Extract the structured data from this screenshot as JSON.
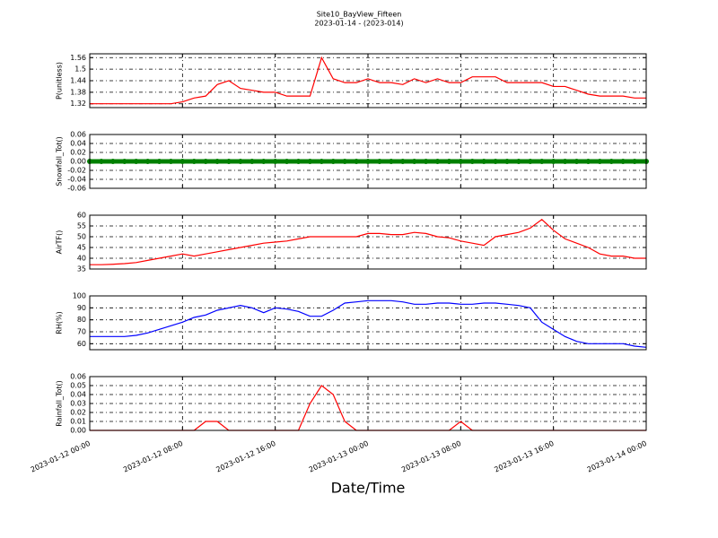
{
  "figure": {
    "title": "Site10_BayView_Fifteen",
    "subtitle": "2023-01-14 - (2023-014)",
    "xlabel": "Date/Time"
  },
  "chart_data": [
    {
      "type": "line",
      "ylabel": "P(unitless)",
      "color": "#ff0000",
      "x": [
        "2023-01-12 00:00",
        "2023-01-12 01:00",
        "2023-01-12 02:00",
        "2023-01-12 03:00",
        "2023-01-12 04:00",
        "2023-01-12 05:00",
        "2023-01-12 06:00",
        "2023-01-12 07:00",
        "2023-01-12 08:00",
        "2023-01-12 09:00",
        "2023-01-12 10:00",
        "2023-01-12 11:00",
        "2023-01-12 12:00",
        "2023-01-12 13:00",
        "2023-01-12 14:00",
        "2023-01-12 15:00",
        "2023-01-12 16:00",
        "2023-01-12 17:00",
        "2023-01-12 18:00",
        "2023-01-12 19:00",
        "2023-01-12 20:00",
        "2023-01-12 21:00",
        "2023-01-12 22:00",
        "2023-01-12 23:00",
        "2023-01-13 00:00",
        "2023-01-13 01:00",
        "2023-01-13 02:00",
        "2023-01-13 03:00",
        "2023-01-13 04:00",
        "2023-01-13 05:00",
        "2023-01-13 06:00",
        "2023-01-13 07:00",
        "2023-01-13 08:00",
        "2023-01-13 09:00",
        "2023-01-13 10:00",
        "2023-01-13 11:00",
        "2023-01-13 12:00",
        "2023-01-13 13:00",
        "2023-01-13 14:00",
        "2023-01-13 15:00",
        "2023-01-13 16:00",
        "2023-01-13 17:00",
        "2023-01-13 18:00",
        "2023-01-13 19:00",
        "2023-01-13 20:00",
        "2023-01-13 21:00",
        "2023-01-13 22:00",
        "2023-01-13 23:00",
        "2023-01-14 00:00"
      ],
      "values": [
        1.32,
        1.32,
        1.32,
        1.32,
        1.32,
        1.32,
        1.32,
        1.32,
        1.33,
        1.35,
        1.36,
        1.42,
        1.44,
        1.4,
        1.39,
        1.38,
        1.38,
        1.36,
        1.36,
        1.36,
        1.56,
        1.45,
        1.43,
        1.43,
        1.45,
        1.43,
        1.43,
        1.42,
        1.45,
        1.43,
        1.45,
        1.43,
        1.43,
        1.46,
        1.46,
        1.46,
        1.43,
        1.43,
        1.43,
        1.43,
        1.41,
        1.41,
        1.39,
        1.37,
        1.36,
        1.36,
        1.36,
        1.35,
        1.35
      ],
      "xlim": [
        "2023-01-12 00:00",
        "2023-01-14 00:00"
      ],
      "xticks": [
        "2023-01-12 00:00",
        "2023-01-12 08:00",
        "2023-01-12 16:00",
        "2023-01-13 00:00",
        "2023-01-13 08:00",
        "2023-01-13 16:00",
        "2023-01-14 00:00"
      ],
      "ylim": [
        1.3,
        1.58
      ],
      "yticks": [
        1.32,
        1.38,
        1.44,
        1.5,
        1.56
      ],
      "grid": true,
      "show_xticklabels": false
    },
    {
      "type": "scatter",
      "ylabel": "Snowfall_Tot()",
      "color": "#008000",
      "x": [
        "2023-01-12 00:00",
        "2023-01-12 01:00",
        "2023-01-12 02:00",
        "2023-01-12 03:00",
        "2023-01-12 04:00",
        "2023-01-12 05:00",
        "2023-01-12 06:00",
        "2023-01-12 07:00",
        "2023-01-12 08:00",
        "2023-01-12 09:00",
        "2023-01-12 10:00",
        "2023-01-12 11:00",
        "2023-01-12 12:00",
        "2023-01-12 13:00",
        "2023-01-12 14:00",
        "2023-01-12 15:00",
        "2023-01-12 16:00",
        "2023-01-12 17:00",
        "2023-01-12 18:00",
        "2023-01-12 19:00",
        "2023-01-12 20:00",
        "2023-01-12 21:00",
        "2023-01-12 22:00",
        "2023-01-12 23:00",
        "2023-01-13 00:00",
        "2023-01-13 01:00",
        "2023-01-13 02:00",
        "2023-01-13 03:00",
        "2023-01-13 04:00",
        "2023-01-13 05:00",
        "2023-01-13 06:00",
        "2023-01-13 07:00",
        "2023-01-13 08:00",
        "2023-01-13 09:00",
        "2023-01-13 10:00",
        "2023-01-13 11:00",
        "2023-01-13 12:00",
        "2023-01-13 13:00",
        "2023-01-13 14:00",
        "2023-01-13 15:00",
        "2023-01-13 16:00",
        "2023-01-13 17:00",
        "2023-01-13 18:00",
        "2023-01-13 19:00",
        "2023-01-13 20:00",
        "2023-01-13 21:00",
        "2023-01-13 22:00",
        "2023-01-13 23:00",
        "2023-01-14 00:00"
      ],
      "values": [
        0,
        0,
        0,
        0,
        0,
        0,
        0,
        0,
        0,
        0,
        0,
        0,
        0,
        0,
        0,
        0,
        0,
        0,
        0,
        0,
        0,
        0,
        0,
        0,
        0,
        0,
        0,
        0,
        0,
        0,
        0,
        0,
        0,
        0,
        0,
        0,
        0,
        0,
        0,
        0,
        0,
        0,
        0,
        0,
        0,
        0,
        0,
        0,
        0
      ],
      "xlim": [
        "2023-01-12 00:00",
        "2023-01-14 00:00"
      ],
      "xticks": [
        "2023-01-12 00:00",
        "2023-01-12 08:00",
        "2023-01-12 16:00",
        "2023-01-13 00:00",
        "2023-01-13 08:00",
        "2023-01-13 16:00",
        "2023-01-14 00:00"
      ],
      "ylim": [
        -0.06,
        0.06
      ],
      "yticks": [
        -0.06,
        -0.04,
        -0.02,
        {
          "value": 0,
          "label": "0.00"
        },
        0.02,
        0.04,
        0.06
      ],
      "grid": true,
      "show_xticklabels": false
    },
    {
      "type": "line",
      "ylabel": "AirTF()",
      "color": "#ff0000",
      "x": [
        "2023-01-12 00:00",
        "2023-01-12 01:00",
        "2023-01-12 02:00",
        "2023-01-12 03:00",
        "2023-01-12 04:00",
        "2023-01-12 05:00",
        "2023-01-12 06:00",
        "2023-01-12 07:00",
        "2023-01-12 08:00",
        "2023-01-12 09:00",
        "2023-01-12 10:00",
        "2023-01-12 11:00",
        "2023-01-12 12:00",
        "2023-01-12 13:00",
        "2023-01-12 14:00",
        "2023-01-12 15:00",
        "2023-01-12 16:00",
        "2023-01-12 17:00",
        "2023-01-12 18:00",
        "2023-01-12 19:00",
        "2023-01-12 20:00",
        "2023-01-12 21:00",
        "2023-01-12 22:00",
        "2023-01-12 23:00",
        "2023-01-13 00:00",
        "2023-01-13 01:00",
        "2023-01-13 02:00",
        "2023-01-13 03:00",
        "2023-01-13 04:00",
        "2023-01-13 05:00",
        "2023-01-13 06:00",
        "2023-01-13 07:00",
        "2023-01-13 08:00",
        "2023-01-13 09:00",
        "2023-01-13 10:00",
        "2023-01-13 11:00",
        "2023-01-13 12:00",
        "2023-01-13 13:00",
        "2023-01-13 14:00",
        "2023-01-13 15:00",
        "2023-01-13 16:00",
        "2023-01-13 17:00",
        "2023-01-13 18:00",
        "2023-01-13 19:00",
        "2023-01-13 20:00",
        "2023-01-13 21:00",
        "2023-01-13 22:00",
        "2023-01-13 23:00",
        "2023-01-14 00:00"
      ],
      "values": [
        37,
        37,
        37.2,
        37.5,
        38,
        39,
        40,
        41,
        42,
        41,
        42,
        43,
        44,
        45,
        46,
        47,
        47.5,
        48,
        49,
        50,
        50,
        50,
        50,
        50,
        51.5,
        51.5,
        51,
        51,
        52,
        51.5,
        50,
        49.5,
        48,
        47,
        46,
        50,
        51,
        52,
        54,
        58,
        53,
        49,
        47,
        45,
        42,
        41,
        41,
        40,
        40
      ],
      "xlim": [
        "2023-01-12 00:00",
        "2023-01-14 00:00"
      ],
      "xticks": [
        "2023-01-12 00:00",
        "2023-01-12 08:00",
        "2023-01-12 16:00",
        "2023-01-13 00:00",
        "2023-01-13 08:00",
        "2023-01-13 16:00",
        "2023-01-14 00:00"
      ],
      "ylim": [
        35,
        60
      ],
      "yticks": [
        35,
        40,
        45,
        50,
        55,
        60
      ],
      "grid": true,
      "show_xticklabels": false
    },
    {
      "type": "line",
      "ylabel": "RH(%)",
      "color": "#0000ff",
      "x": [
        "2023-01-12 00:00",
        "2023-01-12 01:00",
        "2023-01-12 02:00",
        "2023-01-12 03:00",
        "2023-01-12 04:00",
        "2023-01-12 05:00",
        "2023-01-12 06:00",
        "2023-01-12 07:00",
        "2023-01-12 08:00",
        "2023-01-12 09:00",
        "2023-01-12 10:00",
        "2023-01-12 11:00",
        "2023-01-12 12:00",
        "2023-01-12 13:00",
        "2023-01-12 14:00",
        "2023-01-12 15:00",
        "2023-01-12 16:00",
        "2023-01-12 17:00",
        "2023-01-12 18:00",
        "2023-01-12 19:00",
        "2023-01-12 20:00",
        "2023-01-12 21:00",
        "2023-01-12 22:00",
        "2023-01-12 23:00",
        "2023-01-13 00:00",
        "2023-01-13 01:00",
        "2023-01-13 02:00",
        "2023-01-13 03:00",
        "2023-01-13 04:00",
        "2023-01-13 05:00",
        "2023-01-13 06:00",
        "2023-01-13 07:00",
        "2023-01-13 08:00",
        "2023-01-13 09:00",
        "2023-01-13 10:00",
        "2023-01-13 11:00",
        "2023-01-13 12:00",
        "2023-01-13 13:00",
        "2023-01-13 14:00",
        "2023-01-13 15:00",
        "2023-01-13 16:00",
        "2023-01-13 17:00",
        "2023-01-13 18:00",
        "2023-01-13 19:00",
        "2023-01-13 20:00",
        "2023-01-13 21:00",
        "2023-01-13 22:00",
        "2023-01-13 23:00",
        "2023-01-14 00:00"
      ],
      "values": [
        66,
        66,
        66,
        66,
        67,
        69,
        72,
        75,
        78,
        82,
        84,
        88,
        90,
        92,
        90,
        86,
        90,
        89,
        87,
        83,
        83,
        88,
        94,
        95,
        96,
        96,
        96,
        95,
        93,
        93,
        94,
        94,
        93,
        93,
        94,
        94,
        93,
        92,
        90,
        78,
        72,
        66,
        62,
        60,
        60,
        60,
        60,
        58,
        57
      ],
      "xlim": [
        "2023-01-12 00:00",
        "2023-01-14 00:00"
      ],
      "xticks": [
        "2023-01-12 00:00",
        "2023-01-12 08:00",
        "2023-01-12 16:00",
        "2023-01-13 00:00",
        "2023-01-13 08:00",
        "2023-01-13 16:00",
        "2023-01-14 00:00"
      ],
      "ylim": [
        55,
        100
      ],
      "yticks": [
        60,
        70,
        80,
        90,
        100
      ],
      "grid": true,
      "show_xticklabels": false
    },
    {
      "type": "line",
      "ylabel": "Rainfall_Tot()",
      "color": "#ff0000",
      "x": [
        "2023-01-12 00:00",
        "2023-01-12 01:00",
        "2023-01-12 02:00",
        "2023-01-12 03:00",
        "2023-01-12 04:00",
        "2023-01-12 05:00",
        "2023-01-12 06:00",
        "2023-01-12 07:00",
        "2023-01-12 08:00",
        "2023-01-12 09:00",
        "2023-01-12 10:00",
        "2023-01-12 11:00",
        "2023-01-12 12:00",
        "2023-01-12 13:00",
        "2023-01-12 14:00",
        "2023-01-12 15:00",
        "2023-01-12 16:00",
        "2023-01-12 17:00",
        "2023-01-12 18:00",
        "2023-01-12 19:00",
        "2023-01-12 20:00",
        "2023-01-12 21:00",
        "2023-01-12 22:00",
        "2023-01-12 23:00",
        "2023-01-13 00:00",
        "2023-01-13 01:00",
        "2023-01-13 02:00",
        "2023-01-13 03:00",
        "2023-01-13 04:00",
        "2023-01-13 05:00",
        "2023-01-13 06:00",
        "2023-01-13 07:00",
        "2023-01-13 08:00",
        "2023-01-13 09:00",
        "2023-01-13 10:00",
        "2023-01-13 11:00",
        "2023-01-13 12:00",
        "2023-01-13 13:00",
        "2023-01-13 14:00",
        "2023-01-13 15:00",
        "2023-01-13 16:00",
        "2023-01-13 17:00",
        "2023-01-13 18:00",
        "2023-01-13 19:00",
        "2023-01-13 20:00",
        "2023-01-13 21:00",
        "2023-01-13 22:00",
        "2023-01-13 23:00",
        "2023-01-14 00:00"
      ],
      "values": [
        0,
        0,
        0,
        0,
        0,
        0,
        0,
        0,
        0,
        0,
        0.01,
        0.01,
        0,
        0,
        0,
        0,
        0,
        0,
        0,
        0.03,
        0.05,
        0.04,
        0.01,
        0,
        0,
        0,
        0,
        0,
        0,
        0,
        0,
        0,
        0.01,
        0,
        0,
        0,
        0,
        0,
        0,
        0,
        0,
        0,
        0,
        0,
        0,
        0,
        0,
        0,
        0
      ],
      "xlim": [
        "2023-01-12 00:00",
        "2023-01-14 00:00"
      ],
      "xticks": [
        "2023-01-12 00:00",
        "2023-01-12 08:00",
        "2023-01-12 16:00",
        "2023-01-13 00:00",
        "2023-01-13 08:00",
        "2023-01-13 16:00",
        "2023-01-14 00:00"
      ],
      "ylim": [
        0,
        0.06
      ],
      "yticks": [
        {
          "value": 0,
          "label": "0.00"
        },
        0.01,
        0.02,
        0.03,
        0.04,
        0.05,
        0.06
      ],
      "grid": true,
      "show_xticklabels": true
    }
  ]
}
